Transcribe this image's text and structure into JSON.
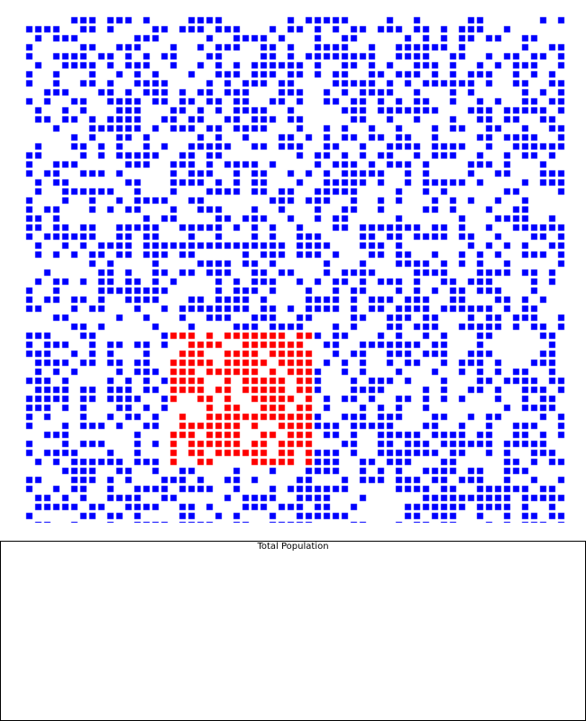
{
  "simulation": {
    "grid": {
      "rows": 60,
      "cols": 60,
      "empty_color": "#ffffff",
      "population_color": "#0000ff",
      "cluster_color": "#ff0000",
      "population_density": 0.5,
      "cluster_density": 0.72
    },
    "plot": {
      "title": "Total Population",
      "series": []
    }
  }
}
